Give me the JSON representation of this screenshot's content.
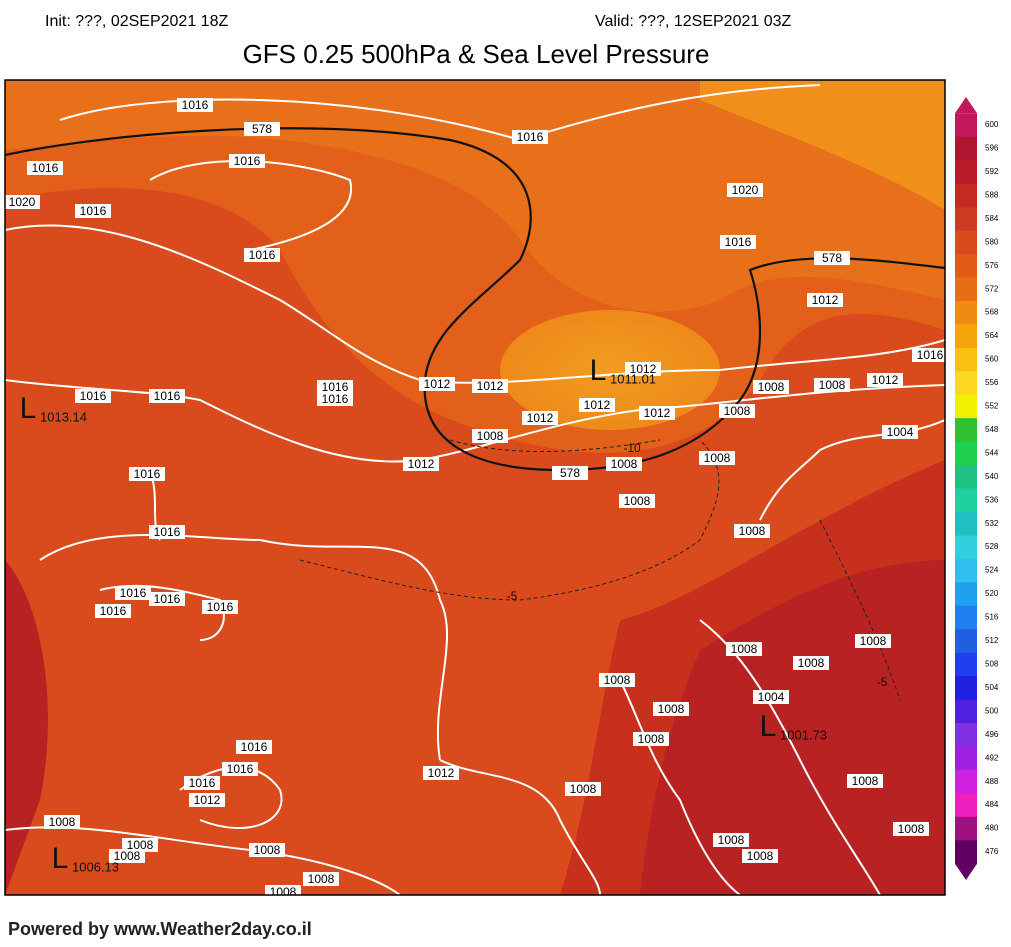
{
  "header": {
    "init": "Init: ???, 02SEP2021 18Z",
    "valid": "Valid: ???, 12SEP2021 03Z",
    "title": "GFS 0.25 500hPa & Sea Level Pressure"
  },
  "colorbar": {
    "ticks": [
      600,
      596,
      592,
      588,
      584,
      580,
      576,
      572,
      568,
      564,
      560,
      556,
      552,
      548,
      544,
      540,
      536,
      532,
      528,
      524,
      520,
      516,
      512,
      508,
      504,
      500,
      496,
      492,
      488,
      484,
      480,
      476
    ],
    "colors": [
      "#c0185a",
      "#b01530",
      "#b81c28",
      "#c42a20",
      "#cc3a20",
      "#d94a1c",
      "#e25c18",
      "#e86e14",
      "#f08a10",
      "#f6a40c",
      "#fac010",
      "#fcd820",
      "#f0f000",
      "#30c030",
      "#20d050",
      "#20c080",
      "#20d0a0",
      "#20c0c0",
      "#30d0e0",
      "#30c0f0",
      "#20a0f0",
      "#2080f0",
      "#2060e0",
      "#2040f0",
      "#2020e0",
      "#5020e0",
      "#8030e0",
      "#a020e0",
      "#d020e0",
      "#f020c0",
      "#a01080",
      "#600060"
    ]
  },
  "labels": [
    "1016",
    "578",
    "1016",
    "1016",
    "1016",
    "1020",
    "1016",
    "1016",
    "1020",
    "1016",
    "578",
    "1012",
    "1016",
    "1012",
    "1012",
    "1012",
    "1016",
    "1016",
    "1016",
    "1016",
    "1008",
    "1008",
    "1012",
    "1012",
    "1012",
    "1012",
    "1008",
    "1004",
    "1008",
    "1012",
    "578",
    "1008",
    "1008",
    "1016",
    "1008",
    "1008",
    "1016",
    "1016",
    "1016",
    "1016",
    "1016",
    "1008",
    "1008",
    "1008",
    "1008",
    "1004",
    "1008",
    "1008",
    "1016",
    "1016",
    "1012",
    "1016",
    "1012",
    "1008",
    "1008",
    "1008",
    "1008",
    "1008",
    "1008",
    "1008",
    "1008",
    "1008",
    "1008",
    "1008"
  ],
  "dashed_labels": [
    "-5",
    "-5",
    "-10"
  ],
  "lows": [
    {
      "marker": "L",
      "value": "1013.14"
    },
    {
      "marker": "L",
      "value": "1011.01"
    },
    {
      "marker": "L",
      "value": "1001.73"
    },
    {
      "marker": "L",
      "value": "1006.13"
    }
  ],
  "footer": "Powered by www.Weather2day.co.il"
}
